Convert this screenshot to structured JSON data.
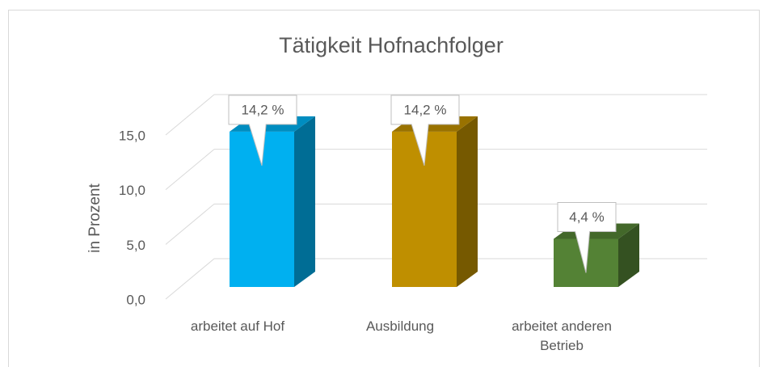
{
  "chart_data": {
    "type": "bar3d",
    "title": "Tätigkeit Hofnachfolger",
    "y_label": "in Prozent",
    "categories": [
      "arbeitet auf Hof",
      "Ausbildung",
      "arbeitet anderen Betrieb"
    ],
    "values": [
      14.2,
      14.2,
      4.4
    ],
    "value_labels": [
      "14,2 %",
      "14,2 %",
      "4,4 %"
    ],
    "colors": [
      "#00b0f0",
      "#bf8f00",
      "#548235"
    ],
    "ylim": [
      0,
      15
    ],
    "yticks": [
      {
        "value": 0,
        "label": "0,0"
      },
      {
        "value": 5,
        "label": "5,0"
      },
      {
        "value": 10,
        "label": "10,0"
      },
      {
        "value": 15,
        "label": "15,0"
      }
    ],
    "grid": true
  }
}
